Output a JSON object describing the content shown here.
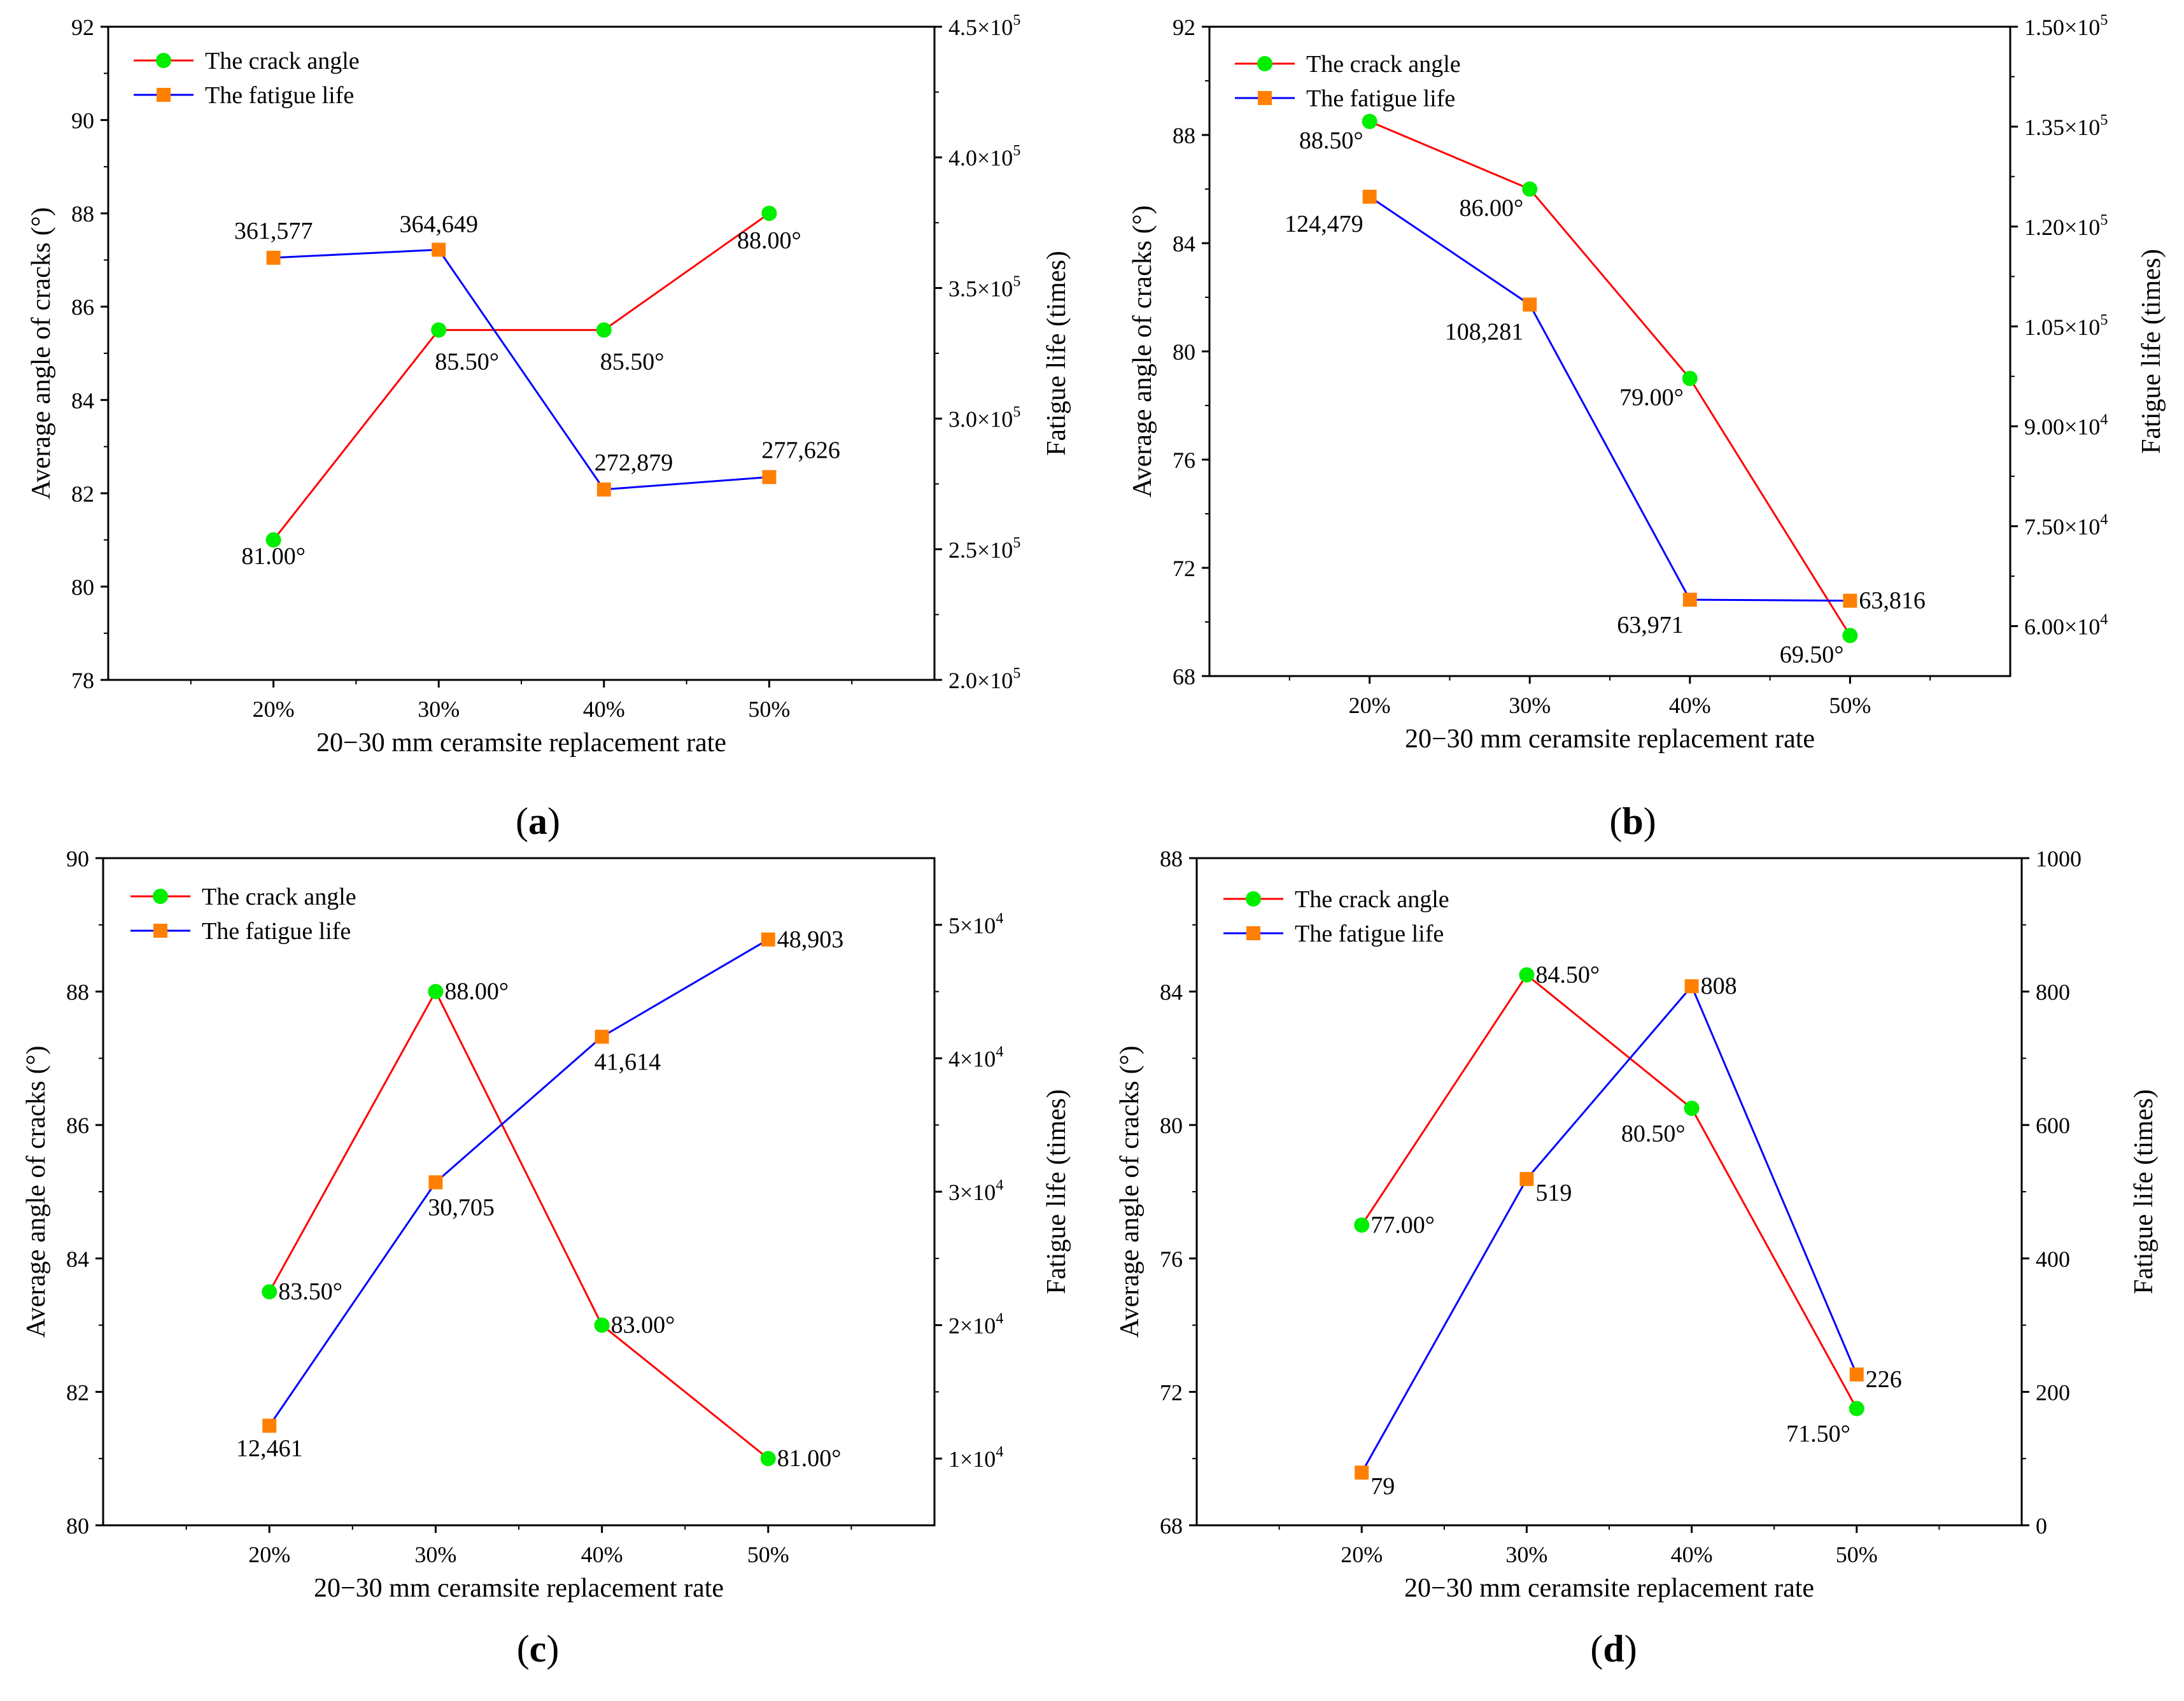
{
  "figure": {
    "xlabel": "20−30 mm ceramsite replacement rate",
    "ylabel_left": "Average angle of cracks (°)",
    "ylabel_right": "Fatigue life (times)",
    "categories": [
      "20%",
      "30%",
      "40%",
      "50%"
    ],
    "legend": {
      "angle": "The crack angle",
      "life": "The fatigue life"
    },
    "colors": {
      "angle_line": "#ff0000",
      "angle_marker": "#00ee00",
      "life_line": "#0000ff",
      "life_marker": "#ff8000",
      "axis": "#000000"
    }
  },
  "chart_data": [
    {
      "type": "line",
      "caption_letter": "a",
      "categories": [
        "20%",
        "30%",
        "40%",
        "50%"
      ],
      "xlabel": "20−30 mm ceramsite replacement rate",
      "ylabel": "Average angle of cracks (°)",
      "y2label": "Fatigue life (times)",
      "ylim": [
        78,
        92
      ],
      "yticks": [
        78,
        80,
        82,
        84,
        86,
        88,
        90,
        92
      ],
      "ytick_labels": [
        "78",
        "80",
        "82",
        "84",
        "86",
        "88",
        "90",
        "92"
      ],
      "y2lim": [
        200000,
        450000
      ],
      "y2ticks": [
        200000,
        250000,
        300000,
        350000,
        400000,
        450000
      ],
      "y2tick_labels": [
        [
          "2.0×10",
          "5"
        ],
        [
          "2.5×10",
          "5"
        ],
        [
          "3.0×10",
          "5"
        ],
        [
          "3.5×10",
          "5"
        ],
        [
          "4.0×10",
          "5"
        ],
        [
          "4.5×10",
          "5"
        ]
      ],
      "series": [
        {
          "name": "The crack angle",
          "axis": "left",
          "values": [
            81.0,
            85.5,
            85.5,
            88.0
          ],
          "labels": [
            "81.00°",
            "85.50°",
            "85.50°",
            "88.00°"
          ]
        },
        {
          "name": "The fatigue life",
          "axis": "right",
          "values": [
            361577,
            364649,
            272879,
            277626
          ],
          "labels": [
            "361,577",
            "364,649",
            "272,879",
            "277,626"
          ]
        }
      ]
    },
    {
      "type": "line",
      "caption_letter": "b",
      "categories": [
        "20%",
        "30%",
        "40%",
        "50%"
      ],
      "xlabel": "20−30 mm ceramsite replacement rate",
      "ylabel": "Average angle of cracks (°)",
      "y2label": "Fatigue life (times)",
      "ylim": [
        68,
        92
      ],
      "yticks": [
        68,
        72,
        76,
        80,
        84,
        88,
        92
      ],
      "ytick_labels": [
        "68",
        "72",
        "76",
        "80",
        "84",
        "88",
        "92"
      ],
      "y2lim": [
        52500,
        150000
      ],
      "y2ticks": [
        60000,
        75000,
        90000,
        105000,
        120000,
        135000,
        150000
      ],
      "y2tick_labels": [
        [
          "6.00×10",
          "4"
        ],
        [
          "7.50×10",
          "4"
        ],
        [
          "9.00×10",
          "4"
        ],
        [
          "1.05×10",
          "5"
        ],
        [
          "1.20×10",
          "5"
        ],
        [
          "1.35×10",
          "5"
        ],
        [
          "1.50×10",
          "5"
        ]
      ],
      "series": [
        {
          "name": "The crack angle",
          "axis": "left",
          "values": [
            88.5,
            86.0,
            79.0,
            69.5
          ],
          "labels": [
            "88.50°",
            "86.00°",
            "79.00°",
            "69.50°"
          ]
        },
        {
          "name": "The fatigue life",
          "axis": "right",
          "values": [
            124479,
            108281,
            63971,
            63816
          ],
          "labels": [
            "124,479",
            "108,281",
            "63,971",
            "63,816"
          ]
        }
      ]
    },
    {
      "type": "line",
      "caption_letter": "c",
      "categories": [
        "20%",
        "30%",
        "40%",
        "50%"
      ],
      "xlabel": "20−30 mm ceramsite replacement rate",
      "ylabel": "Average angle of cracks (°)",
      "y2label": "Fatigue life (times)",
      "ylim": [
        80,
        90
      ],
      "yticks": [
        80,
        82,
        84,
        86,
        88,
        90
      ],
      "ytick_labels": [
        "80",
        "82",
        "84",
        "86",
        "88",
        "90"
      ],
      "y2lim": [
        5000,
        55000
      ],
      "y2ticks": [
        10000,
        20000,
        30000,
        40000,
        50000
      ],
      "y2tick_labels": [
        [
          "1×10",
          "4"
        ],
        [
          "2×10",
          "4"
        ],
        [
          "3×10",
          "4"
        ],
        [
          "4×10",
          "4"
        ],
        [
          "5×10",
          "4"
        ]
      ],
      "series": [
        {
          "name": "The crack angle",
          "axis": "left",
          "values": [
            83.5,
            88.0,
            83.0,
            81.0
          ],
          "labels": [
            "83.50°",
            "88.00°",
            "83.00°",
            "81.00°"
          ]
        },
        {
          "name": "The fatigue life",
          "axis": "right",
          "values": [
            12461,
            30705,
            41614,
            48903
          ],
          "labels": [
            "12,461",
            "30,705",
            "41,614",
            "48,903"
          ]
        }
      ]
    },
    {
      "type": "line",
      "caption_letter": "d",
      "categories": [
        "20%",
        "30%",
        "40%",
        "50%"
      ],
      "xlabel": "20−30 mm ceramsite replacement rate",
      "ylabel": "Average angle of cracks (°)",
      "y2label": "Fatigue life (times)",
      "ylim": [
        68,
        88
      ],
      "yticks": [
        68,
        72,
        76,
        80,
        84,
        88
      ],
      "ytick_labels": [
        "68",
        "72",
        "76",
        "80",
        "84",
        "88"
      ],
      "y2lim": [
        0,
        1000
      ],
      "y2ticks": [
        0,
        200,
        400,
        600,
        800,
        1000
      ],
      "y2tick_labels": [
        [
          "0",
          ""
        ],
        [
          "200",
          ""
        ],
        [
          "400",
          ""
        ],
        [
          "600",
          ""
        ],
        [
          "800",
          ""
        ],
        [
          "1000",
          ""
        ]
      ],
      "series": [
        {
          "name": "The crack angle",
          "axis": "left",
          "values": [
            77.0,
            84.5,
            80.5,
            71.5
          ],
          "labels": [
            "77.00°",
            "84.50°",
            "80.50°",
            "71.50°"
          ]
        },
        {
          "name": "The fatigue life",
          "axis": "right",
          "values": [
            79,
            519,
            808,
            226
          ],
          "labels": [
            "79",
            "519",
            "808",
            "226"
          ]
        }
      ]
    }
  ]
}
